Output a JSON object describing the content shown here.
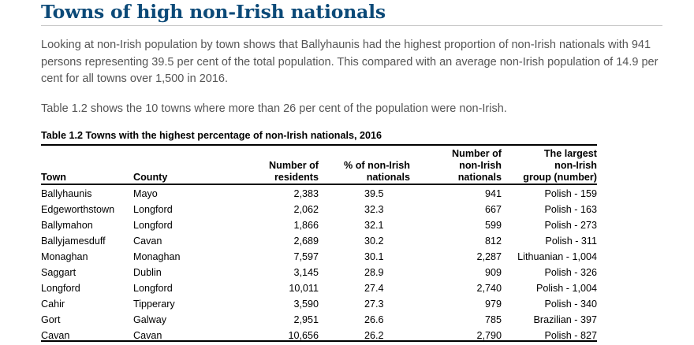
{
  "heading": "Towns of high non-Irish nationals",
  "paragraphs": [
    "Looking at non-Irish population by town shows that Ballyhaunis had the highest proportion of non-Irish nationals with 941 persons representing 39.5 per cent of the total population. This compared with an average non-Irish population of 14.9 per cent for all towns over 1,500 in 2016.",
    "Table 1.2 shows the 10 towns where more than 26 per cent of the population were non-Irish."
  ],
  "table": {
    "title": "Table 1.2 Towns with the highest percentage of non-Irish nationals, 2016",
    "headers": {
      "town": "Town",
      "county": "County",
      "residents_1": "Number of",
      "residents_2": "residents",
      "pct_1": "% of non-Irish",
      "pct_2": "nationals",
      "num_1": "Number of",
      "num_2": "non-Irish",
      "num_3": "nationals",
      "group_1": "The largest",
      "group_2": "non-Irish",
      "group_3": "group (number)"
    },
    "rows": [
      {
        "town": "Ballyhaunis",
        "county": "Mayo",
        "residents": "2,383",
        "pct": "39.5",
        "non_irish": "941",
        "largest_group": "Polish - 159"
      },
      {
        "town": "Edgeworthstown",
        "county": "Longford",
        "residents": "2,062",
        "pct": "32.3",
        "non_irish": "667",
        "largest_group": "Polish - 163"
      },
      {
        "town": "Ballymahon",
        "county": "Longford",
        "residents": "1,866",
        "pct": "32.1",
        "non_irish": "599",
        "largest_group": "Polish - 273"
      },
      {
        "town": "Ballyjamesduff",
        "county": "Cavan",
        "residents": "2,689",
        "pct": "30.2",
        "non_irish": "812",
        "largest_group": "Polish - 311"
      },
      {
        "town": "Monaghan",
        "county": "Monaghan",
        "residents": "7,597",
        "pct": "30.1",
        "non_irish": "2,287",
        "largest_group": "Lithuanian - 1,004"
      },
      {
        "town": "Saggart",
        "county": "Dublin",
        "residents": "3,145",
        "pct": "28.9",
        "non_irish": "909",
        "largest_group": "Polish - 326"
      },
      {
        "town": "Longford",
        "county": "Longford",
        "residents": "10,011",
        "pct": "27.4",
        "non_irish": "2,740",
        "largest_group": "Polish - 1,004"
      },
      {
        "town": "Cahir",
        "county": "Tipperary",
        "residents": "3,590",
        "pct": "27.3",
        "non_irish": "979",
        "largest_group": "Polish - 340"
      },
      {
        "town": "Gort",
        "county": "Galway",
        "residents": "2,951",
        "pct": "26.6",
        "non_irish": "785",
        "largest_group": "Brazilian - 397"
      },
      {
        "town": "Cavan",
        "county": "Cavan",
        "residents": "10,656",
        "pct": "26.2",
        "non_irish": "2,790",
        "largest_group": "Polish - 827"
      }
    ]
  },
  "colors": {
    "heading": "#0c4a78",
    "body_text": "#555555",
    "table_text": "#000000"
  }
}
